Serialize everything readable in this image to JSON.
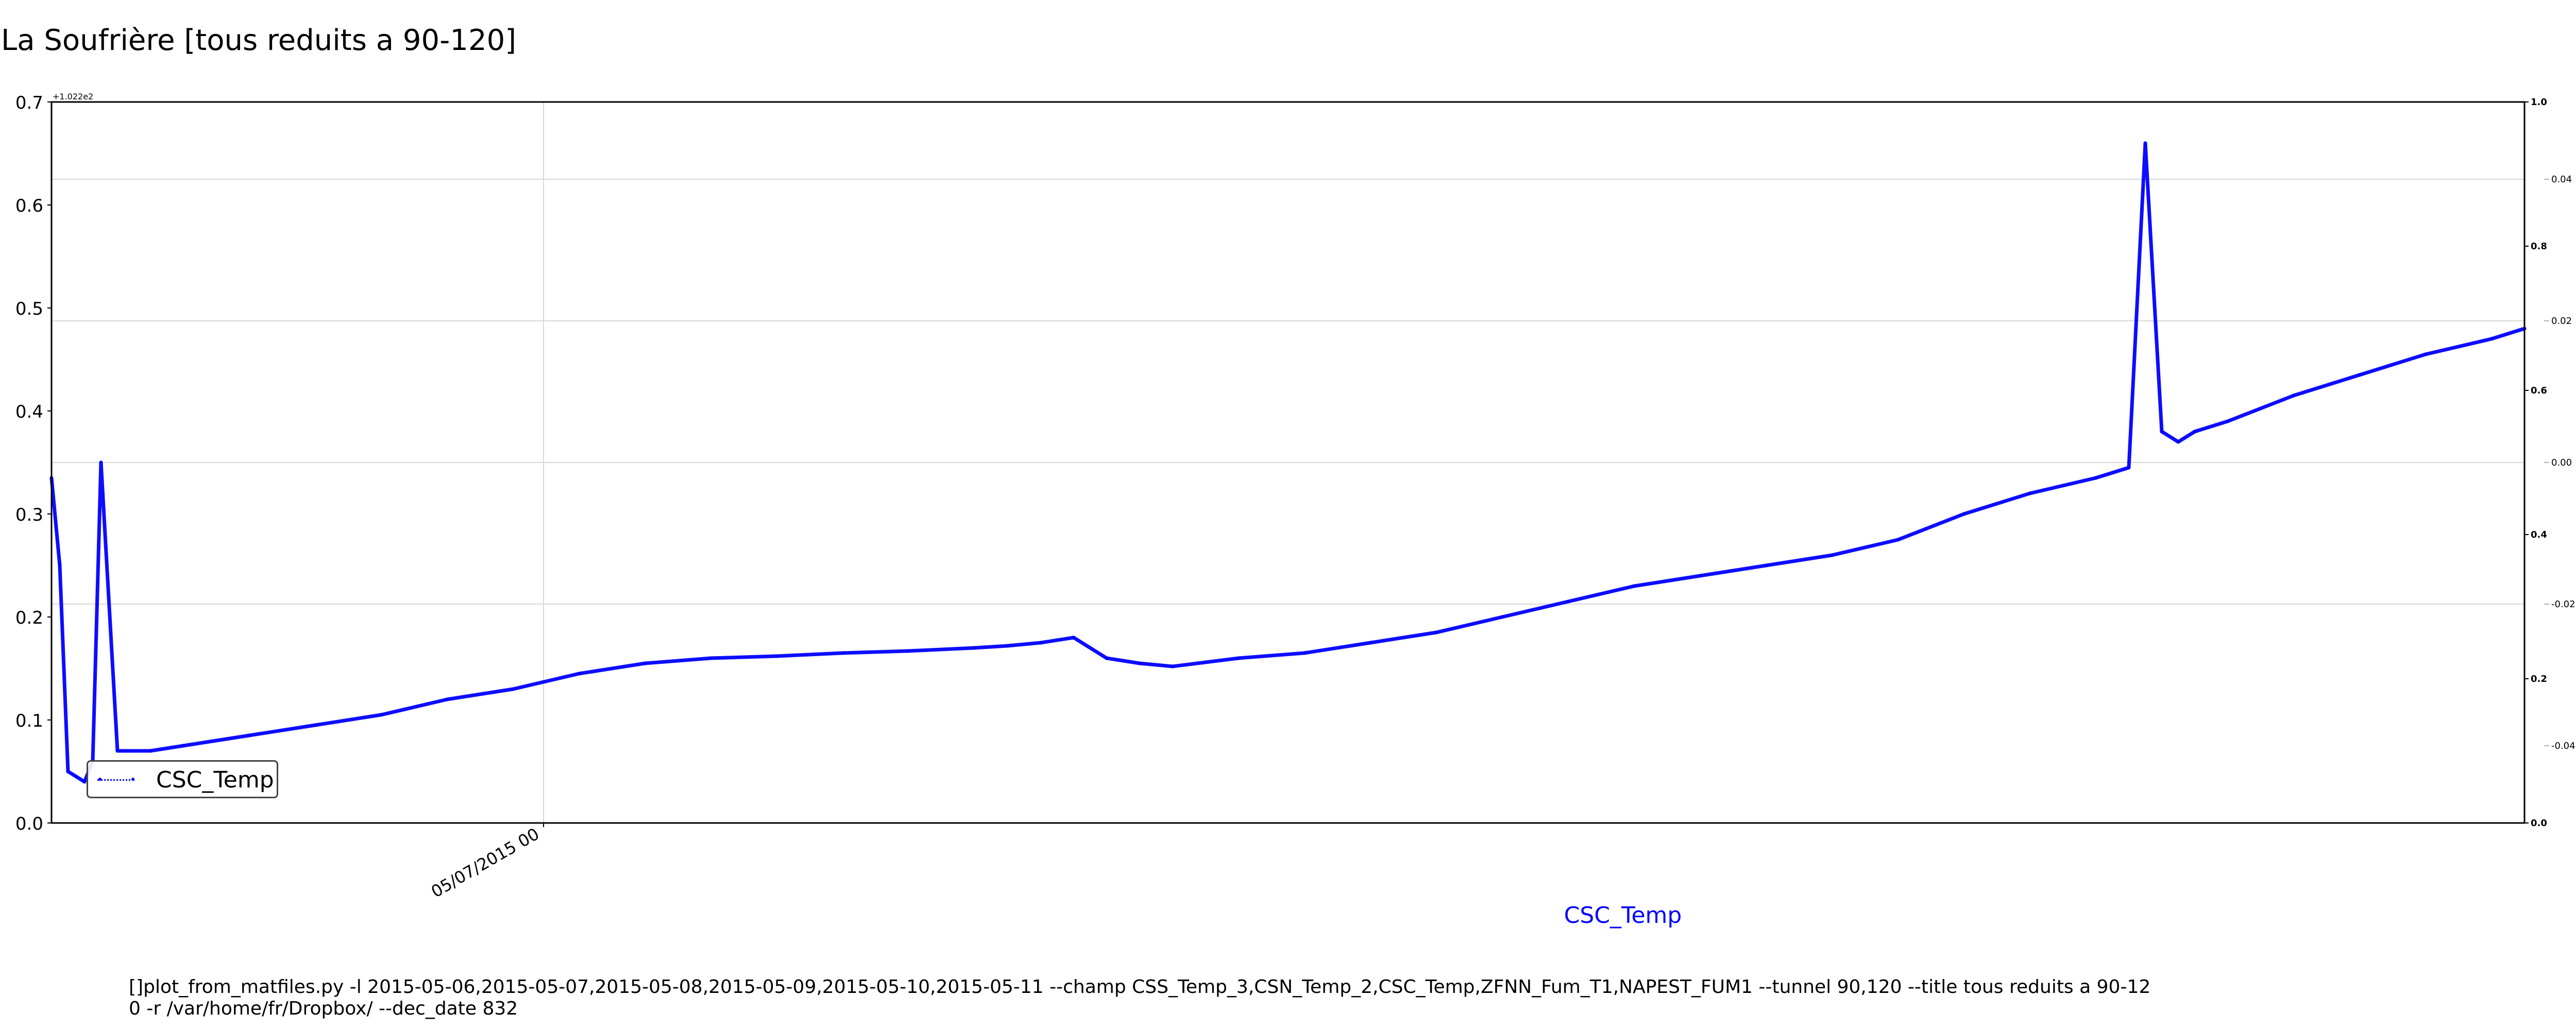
{
  "chart_data": {
    "type": "line",
    "title": "La Soufrière [tous reduits a 90-120]",
    "xlabel": "CSC_Temp",
    "ylabel": "",
    "ylim": [
      0.0,
      0.7
    ],
    "y_offset_label": "+1.022e2",
    "y_ticks": [
      "0.0",
      "0.1",
      "0.2",
      "0.3",
      "0.4",
      "0.5",
      "0.6",
      "0.7"
    ],
    "x_tick_labels": [
      "05/07/2015 00"
    ],
    "right_axis_ticks": [
      "0.0",
      "0.2",
      "0.4",
      "0.6",
      "0.8",
      "1.0"
    ],
    "right_axis_secondary_ticks": [
      "0.04",
      "0.02",
      "0.00",
      "-0.02",
      "-0.04"
    ],
    "grid": true,
    "legend_position": "lower-left",
    "series": [
      {
        "name": "CSC_Temp",
        "color": "#0000ff",
        "x": [
          0.0,
          0.5,
          1.0,
          1.5,
          2.0,
          2.5,
          3.0,
          4.0,
          6.0,
          8.0,
          12.0,
          16.0,
          20.0,
          24.0,
          28.0,
          32.0,
          36.0,
          40.0,
          44.0,
          48.0,
          52.0,
          56.0,
          58.0,
          60.0,
          62.0,
          64.0,
          66.0,
          68.0,
          72.0,
          76.0,
          80.0,
          84.0,
          88.0,
          92.0,
          96.0,
          100.0,
          104.0,
          108.0,
          112.0,
          116.0,
          120.0,
          124.0,
          126.0,
          127.0,
          128.0,
          129.0,
          130.0,
          132.0,
          136.0,
          140.0,
          144.0,
          148.0,
          150.0
        ],
        "y": [
          0.335,
          0.25,
          0.05,
          0.045,
          0.04,
          0.06,
          0.35,
          0.07,
          0.07,
          0.075,
          0.085,
          0.095,
          0.105,
          0.12,
          0.13,
          0.145,
          0.155,
          0.16,
          0.162,
          0.165,
          0.167,
          0.17,
          0.172,
          0.175,
          0.18,
          0.16,
          0.155,
          0.152,
          0.16,
          0.165,
          0.175,
          0.185,
          0.2,
          0.215,
          0.23,
          0.24,
          0.25,
          0.26,
          0.275,
          0.3,
          0.32,
          0.335,
          0.345,
          0.66,
          0.38,
          0.37,
          0.38,
          0.39,
          0.415,
          0.435,
          0.455,
          0.47,
          0.48
        ]
      }
    ]
  },
  "footer_command": "[]plot_from_matfiles.py -l 2015-05-06,2015-05-07,2015-05-08,2015-05-09,2015-05-10,2015-05-11 --champ CSS_Temp_3,CSN_Temp_2,CSC_Temp,ZFNN_Fum_T1,NAPEST_FUM1 --tunnel 90,120 --title tous reduits a 90-12\n0 -r /var/home/fr/Dropbox/ --dec_date 832"
}
